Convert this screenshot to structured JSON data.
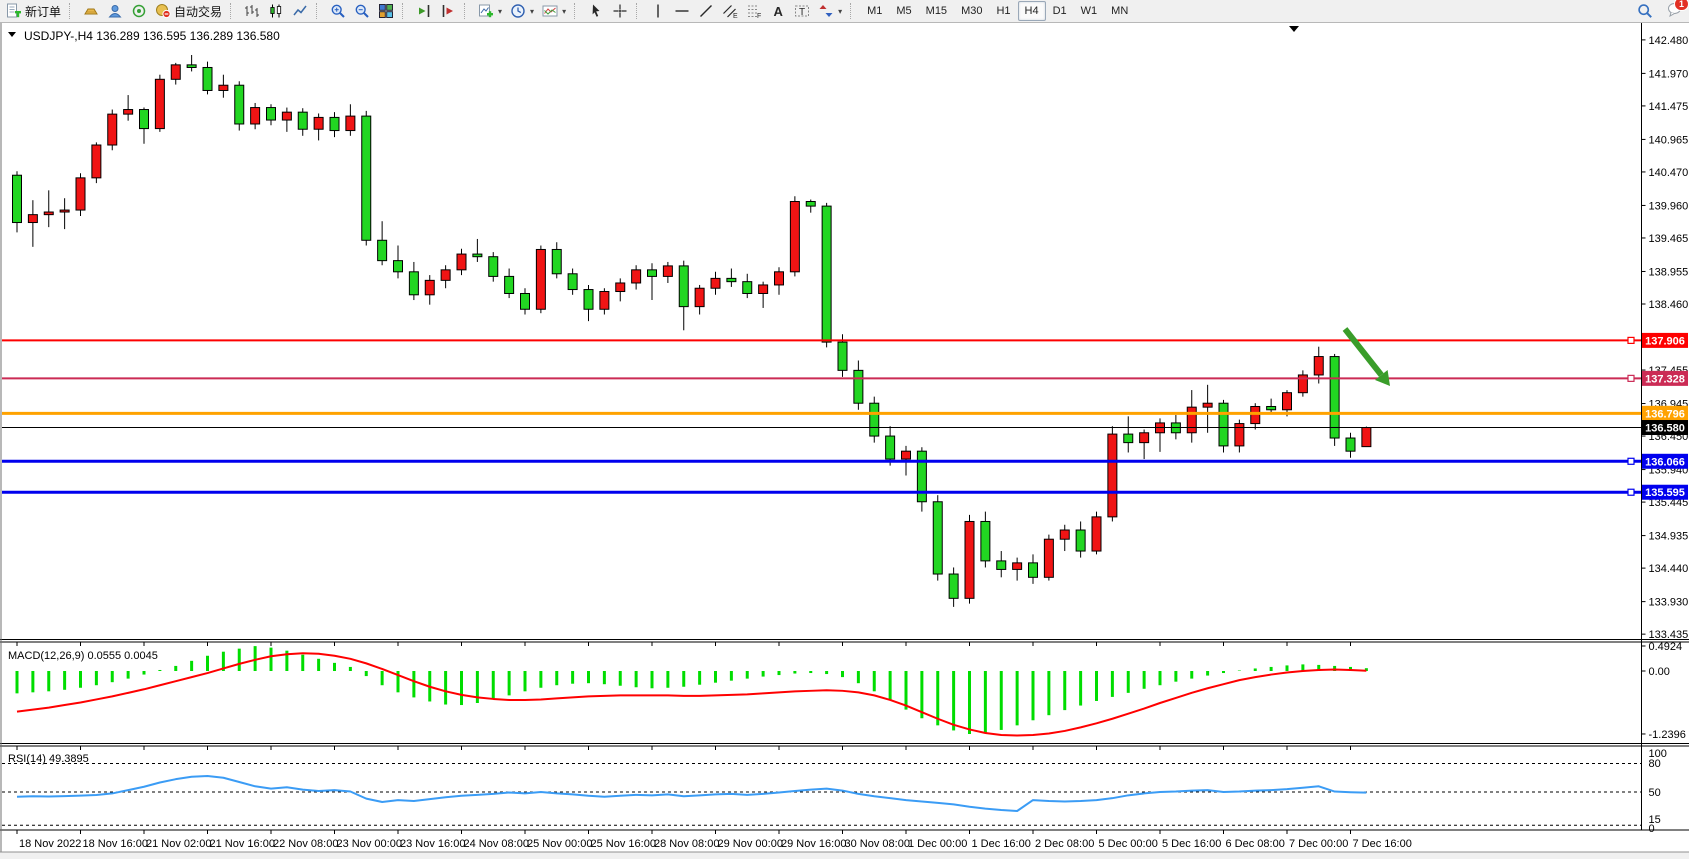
{
  "toolbar": {
    "groups": [
      {
        "items": [
          {
            "name": "new-order-button",
            "icon": "new-order",
            "label": "新订单"
          }
        ]
      },
      {
        "items": [
          {
            "name": "deposit-button",
            "icon": "gold-depo"
          },
          {
            "name": "community-button",
            "icon": "community"
          },
          {
            "name": "signals-button",
            "icon": "signals"
          },
          {
            "name": "autotrading-button",
            "icon": "autotrade",
            "label": "自动交易"
          }
        ]
      },
      {
        "items": [
          {
            "name": "bar-chart-button",
            "icon": "bar-chart"
          },
          {
            "name": "candle-chart-button",
            "icon": "candle-chart"
          },
          {
            "name": "line-chart-button",
            "icon": "line-chart"
          }
        ]
      },
      {
        "items": [
          {
            "name": "zoom-in-button",
            "icon": "zoom-in"
          },
          {
            "name": "zoom-out-button",
            "icon": "zoom-out"
          },
          {
            "name": "tile-windows-button",
            "icon": "tile-windows"
          }
        ]
      },
      {
        "items": [
          {
            "name": "scroll-to-end-button",
            "icon": "scroll-end"
          },
          {
            "name": "chart-shift-button",
            "icon": "auto-scroll"
          }
        ]
      },
      {
        "items": [
          {
            "name": "new-chart-button",
            "icon": "new-chart",
            "dropdown": true
          },
          {
            "name": "periods-button",
            "icon": "period-clock",
            "dropdown": true
          },
          {
            "name": "templates-button",
            "icon": "templates",
            "dropdown": true
          }
        ]
      },
      {
        "items": [
          {
            "name": "cursor-tool-button",
            "icon": "cursor"
          },
          {
            "name": "crosshair-tool-button",
            "icon": "crosshair"
          }
        ]
      },
      {
        "items": [
          {
            "name": "vertical-line-tool",
            "icon": "vertical-line"
          },
          {
            "name": "horizontal-line-tool",
            "icon": "horizontal-line"
          },
          {
            "name": "trendline-tool",
            "icon": "trendline"
          },
          {
            "name": "equidistant-channel-tool",
            "icon": "equidistant-channel"
          },
          {
            "name": "fibonacci-tool",
            "icon": "fibonacci"
          },
          {
            "name": "text-tool",
            "icon": "text"
          },
          {
            "name": "text-label-tool",
            "icon": "text-label"
          },
          {
            "name": "arrows-tool",
            "icon": "arrows",
            "dropdown": true
          }
        ]
      }
    ],
    "timeframes": [
      {
        "label": "M1"
      },
      {
        "label": "M5"
      },
      {
        "label": "M15"
      },
      {
        "label": "M30"
      },
      {
        "label": "H1"
      },
      {
        "label": "H4",
        "active": true
      },
      {
        "label": "D1"
      },
      {
        "label": "W1"
      },
      {
        "label": "MN"
      }
    ],
    "right": {
      "search_icon": "search",
      "chat_icon": "chat",
      "chat_badge": "1"
    }
  },
  "chart": {
    "symbol_title": "USDJPY-,H4",
    "ohlc_text": "136.289 136.595 136.289 136.580",
    "macd_label": "MACD(12,26,9) 0.0555 0.0045",
    "rsi_label": "RSI(14) 49.3895",
    "current_price": "136.580",
    "colors": {
      "bull": "#f01414",
      "bear": "#22d622",
      "wick": "#000000",
      "level_red": "#fe0000",
      "level_crimson": "#cb2b55",
      "level_orange": "#ffa200",
      "level_blue": "#0000ee",
      "current_line": "#000000",
      "macd_hist": "#00dd00",
      "macd_signal": "#ff0000",
      "rsi_line": "#3b9cf5",
      "arrow_green": "#3a9d2a",
      "background": "#ffffff"
    }
  },
  "chart_data": {
    "type": "candlestick",
    "symbol": "USDJPY-",
    "timeframe": "H4",
    "title": "USDJPY-,H4 136.289 136.595 136.289 136.580",
    "ylim_main": [
      133.435,
      142.48
    ],
    "grid": false,
    "price_ticks": [
      "142.480",
      "141.970",
      "141.475",
      "140.965",
      "140.470",
      "139.960",
      "139.465",
      "138.955",
      "138.460",
      "137.455",
      "136.945",
      "136.450",
      "135.940",
      "135.445",
      "134.935",
      "134.440",
      "133.930",
      "133.435"
    ],
    "levels": [
      {
        "value": 137.906,
        "label": "137.906",
        "color": "#fe0000",
        "width": 2,
        "marker": true
      },
      {
        "value": 137.328,
        "label": "137.328",
        "color": "#cb2b55",
        "width": 2,
        "marker": true
      },
      {
        "value": 136.796,
        "label": "136.796",
        "color": "#ffa200",
        "width": 3,
        "marker": false
      },
      {
        "value": 136.066,
        "label": "136.066",
        "color": "#0000ee",
        "width": 3,
        "marker": true
      },
      {
        "value": 135.595,
        "label": "135.595",
        "color": "#0000ee",
        "width": 3,
        "marker": true
      }
    ],
    "current_price": {
      "value": 136.58,
      "label": "136.580"
    },
    "x_labels": [
      "18 Nov 2022",
      "18 Nov 16:00",
      "21 Nov 02:00",
      "21 Nov 16:00",
      "22 Nov 08:00",
      "23 Nov 00:00",
      "23 Nov 16:00",
      "24 Nov 08:00",
      "25 Nov 00:00",
      "25 Nov 16:00",
      "28 Nov 08:00",
      "29 Nov 00:00",
      "29 Nov 16:00",
      "30 Nov 08:00",
      "1 Dec 00:00",
      "1 Dec 16:00",
      "2 Dec 08:00",
      "5 Dec 00:00",
      "5 Dec 16:00",
      "6 Dec 08:00",
      "7 Dec 00:00",
      "7 Dec 16:00"
    ],
    "label_every": 4,
    "candles": [
      [
        140.42,
        140.48,
        139.55,
        139.7
      ],
      [
        139.7,
        140.04,
        139.33,
        139.82
      ],
      [
        139.82,
        140.19,
        139.63,
        139.86
      ],
      [
        139.86,
        140.07,
        139.6,
        139.89
      ],
      [
        139.89,
        140.45,
        139.8,
        140.38
      ],
      [
        140.38,
        140.92,
        140.3,
        140.88
      ],
      [
        140.88,
        141.42,
        140.8,
        141.35
      ],
      [
        141.35,
        141.64,
        141.25,
        141.42
      ],
      [
        141.42,
        141.45,
        140.9,
        141.13
      ],
      [
        141.13,
        141.95,
        141.08,
        141.88
      ],
      [
        141.88,
        142.13,
        141.8,
        142.1
      ],
      [
        142.1,
        142.25,
        142.0,
        142.06
      ],
      [
        142.06,
        142.15,
        141.65,
        141.71
      ],
      [
        141.71,
        141.95,
        141.6,
        141.79
      ],
      [
        141.79,
        141.85,
        141.1,
        141.2
      ],
      [
        141.2,
        141.52,
        141.12,
        141.45
      ],
      [
        141.45,
        141.5,
        141.18,
        141.26
      ],
      [
        141.26,
        141.45,
        141.08,
        141.38
      ],
      [
        141.38,
        141.44,
        141.02,
        141.12
      ],
      [
        141.12,
        141.36,
        140.95,
        141.3
      ],
      [
        141.3,
        141.38,
        141.0,
        141.1
      ],
      [
        141.1,
        141.5,
        141.02,
        141.32
      ],
      [
        141.32,
        141.4,
        139.35,
        139.43
      ],
      [
        139.43,
        139.72,
        139.05,
        139.12
      ],
      [
        139.12,
        139.35,
        138.85,
        138.95
      ],
      [
        138.95,
        139.1,
        138.52,
        138.6
      ],
      [
        138.6,
        138.9,
        138.45,
        138.82
      ],
      [
        138.82,
        139.05,
        138.7,
        138.98
      ],
      [
        138.98,
        139.3,
        138.9,
        139.22
      ],
      [
        139.22,
        139.45,
        139.1,
        139.18
      ],
      [
        139.18,
        139.25,
        138.8,
        138.88
      ],
      [
        138.88,
        139.0,
        138.55,
        138.62
      ],
      [
        138.62,
        138.7,
        138.3,
        138.38
      ],
      [
        138.38,
        139.35,
        138.32,
        139.29
      ],
      [
        139.29,
        139.4,
        138.85,
        138.92
      ],
      [
        138.92,
        139.0,
        138.6,
        138.68
      ],
      [
        138.68,
        138.75,
        138.2,
        138.38
      ],
      [
        138.38,
        138.7,
        138.3,
        138.65
      ],
      [
        138.65,
        138.85,
        138.5,
        138.78
      ],
      [
        138.78,
        139.05,
        138.68,
        138.98
      ],
      [
        138.98,
        139.08,
        138.52,
        138.88
      ],
      [
        138.88,
        139.1,
        138.78,
        139.04
      ],
      [
        139.04,
        139.12,
        138.06,
        138.42
      ],
      [
        138.42,
        138.75,
        138.3,
        138.7
      ],
      [
        138.7,
        138.95,
        138.6,
        138.85
      ],
      [
        138.85,
        139.0,
        138.72,
        138.8
      ],
      [
        138.8,
        138.92,
        138.55,
        138.62
      ],
      [
        138.62,
        138.8,
        138.4,
        138.75
      ],
      [
        138.75,
        139.02,
        138.6,
        138.95
      ],
      [
        138.95,
        140.1,
        138.88,
        140.02
      ],
      [
        140.02,
        140.05,
        139.85,
        139.95
      ],
      [
        139.95,
        140.0,
        137.8,
        137.88
      ],
      [
        137.88,
        138.0,
        137.35,
        137.45
      ],
      [
        137.45,
        137.6,
        136.85,
        136.95
      ],
      [
        136.95,
        137.05,
        136.35,
        136.45
      ],
      [
        136.45,
        136.6,
        136.0,
        136.1
      ],
      [
        136.1,
        136.3,
        135.85,
        136.22
      ],
      [
        136.22,
        136.28,
        135.3,
        135.45
      ],
      [
        135.45,
        135.55,
        134.25,
        134.35
      ],
      [
        134.35,
        134.45,
        133.85,
        133.98
      ],
      [
        133.98,
        135.25,
        133.9,
        135.15
      ],
      [
        135.15,
        135.3,
        134.45,
        134.55
      ],
      [
        134.55,
        134.7,
        134.3,
        134.42
      ],
      [
        134.42,
        134.6,
        134.25,
        134.52
      ],
      [
        134.52,
        134.65,
        134.2,
        134.3
      ],
      [
        134.3,
        134.95,
        134.25,
        134.88
      ],
      [
        134.88,
        135.1,
        134.7,
        135.02
      ],
      [
        135.02,
        135.15,
        134.6,
        134.7
      ],
      [
        134.7,
        135.3,
        134.65,
        135.22
      ],
      [
        135.22,
        136.6,
        135.15,
        136.48
      ],
      [
        136.48,
        136.75,
        136.2,
        136.35
      ],
      [
        136.35,
        136.55,
        136.1,
        136.5
      ],
      [
        136.5,
        136.72,
        136.21,
        136.65
      ],
      [
        136.65,
        136.77,
        136.4,
        136.5
      ],
      [
        136.5,
        137.15,
        136.35,
        136.89
      ],
      [
        136.89,
        137.23,
        136.5,
        136.95
      ],
      [
        136.95,
        137.0,
        136.2,
        136.3
      ],
      [
        136.3,
        136.7,
        136.2,
        136.64
      ],
      [
        136.64,
        136.95,
        136.55,
        136.9
      ],
      [
        136.9,
        137.02,
        136.78,
        136.85
      ],
      [
        136.85,
        137.15,
        136.75,
        137.11
      ],
      [
        137.11,
        137.45,
        137.05,
        137.38
      ],
      [
        137.38,
        137.81,
        137.25,
        137.66
      ],
      [
        137.66,
        137.7,
        136.3,
        136.42
      ],
      [
        136.42,
        136.5,
        136.12,
        136.22
      ],
      [
        136.289,
        136.595,
        136.289,
        136.58
      ]
    ],
    "macd": {
      "label": "MACD(12,26,9) 0.0555 0.0045",
      "axis_ticks": [
        "0.4924",
        "0.00",
        "-1.2396"
      ],
      "ylim": [
        -1.2396,
        0.4924
      ],
      "histogram": [
        -0.44,
        -0.42,
        -0.4,
        -0.37,
        -0.33,
        -0.28,
        -0.22,
        -0.15,
        -0.07,
        0.02,
        0.1,
        0.2,
        0.3,
        0.38,
        0.44,
        0.49,
        0.46,
        0.4,
        0.32,
        0.24,
        0.16,
        0.08,
        -0.1,
        -0.28,
        -0.42,
        -0.52,
        -0.6,
        -0.66,
        -0.67,
        -0.63,
        -0.56,
        -0.48,
        -0.4,
        -0.33,
        -0.28,
        -0.25,
        -0.24,
        -0.26,
        -0.29,
        -0.32,
        -0.34,
        -0.33,
        -0.31,
        -0.27,
        -0.23,
        -0.19,
        -0.15,
        -0.11,
        -0.08,
        -0.05,
        -0.04,
        -0.06,
        -0.12,
        -0.24,
        -0.4,
        -0.58,
        -0.76,
        -0.93,
        -1.07,
        -1.17,
        -1.24,
        -1.22,
        -1.16,
        -1.07,
        -0.97,
        -0.87,
        -0.77,
        -0.68,
        -0.59,
        -0.51,
        -0.43,
        -0.35,
        -0.28,
        -0.21,
        -0.15,
        -0.09,
        -0.04,
        0.01,
        0.05,
        0.08,
        0.11,
        0.13,
        0.12,
        0.1,
        0.08,
        0.0555
      ],
      "signal": [
        -0.8,
        -0.76,
        -0.72,
        -0.67,
        -0.62,
        -0.56,
        -0.5,
        -0.43,
        -0.36,
        -0.28,
        -0.2,
        -0.12,
        -0.04,
        0.05,
        0.14,
        0.22,
        0.29,
        0.33,
        0.35,
        0.34,
        0.3,
        0.24,
        0.15,
        0.04,
        -0.08,
        -0.2,
        -0.31,
        -0.4,
        -0.47,
        -0.52,
        -0.55,
        -0.57,
        -0.57,
        -0.56,
        -0.54,
        -0.52,
        -0.5,
        -0.49,
        -0.48,
        -0.48,
        -0.48,
        -0.48,
        -0.49,
        -0.49,
        -0.48,
        -0.47,
        -0.46,
        -0.44,
        -0.42,
        -0.4,
        -0.39,
        -0.38,
        -0.39,
        -0.42,
        -0.48,
        -0.57,
        -0.68,
        -0.81,
        -0.94,
        -1.06,
        -1.15,
        -1.22,
        -1.26,
        -1.27,
        -1.26,
        -1.23,
        -1.18,
        -1.11,
        -1.03,
        -0.94,
        -0.84,
        -0.74,
        -0.63,
        -0.53,
        -0.43,
        -0.34,
        -0.26,
        -0.18,
        -0.12,
        -0.07,
        -0.03,
        0.0,
        0.02,
        0.03,
        0.02,
        0.0045
      ]
    },
    "rsi": {
      "label": "RSI(14) 49.3895",
      "axis_ticks": [
        "100",
        "80",
        "50",
        "15",
        "0"
      ],
      "dashed_levels": [
        80,
        50,
        15
      ],
      "ylim": [
        0,
        100
      ],
      "values": [
        45.0,
        45.5,
        45.2,
        45.6,
        46.2,
        46.8,
        48.5,
        52.0,
        55.5,
        60.0,
        63.5,
        66.0,
        66.8,
        65.0,
        60.5,
        56.0,
        53.5,
        55.0,
        52.5,
        51.0,
        52.0,
        50.5,
        43.0,
        39.5,
        41.5,
        40.5,
        42.5,
        44.5,
        46.0,
        47.0,
        48.0,
        49.5,
        48.5,
        50.0,
        48.5,
        47.5,
        46.0,
        45.0,
        46.0,
        47.0,
        46.5,
        47.5,
        45.5,
        46.5,
        47.5,
        48.0,
        47.0,
        48.0,
        49.5,
        51.0,
        52.5,
        53.5,
        51.5,
        48.0,
        45.5,
        43.5,
        41.5,
        40.0,
        38.5,
        37.0,
        34.5,
        32.5,
        31.0,
        30.0,
        41.5,
        40.5,
        40.0,
        40.5,
        41.5,
        43.5,
        46.5,
        48.5,
        50.0,
        50.5,
        51.5,
        52.0,
        50.0,
        50.5,
        51.5,
        52.0,
        53.0,
        54.5,
        56.0,
        50.5,
        49.8,
        49.39
      ]
    },
    "annotations": [
      {
        "type": "arrow",
        "color": "#3a9d2a",
        "from_price": 137.98,
        "to_price": 137.12,
        "note": "down-right arrow above price, right of last candle"
      }
    ]
  }
}
